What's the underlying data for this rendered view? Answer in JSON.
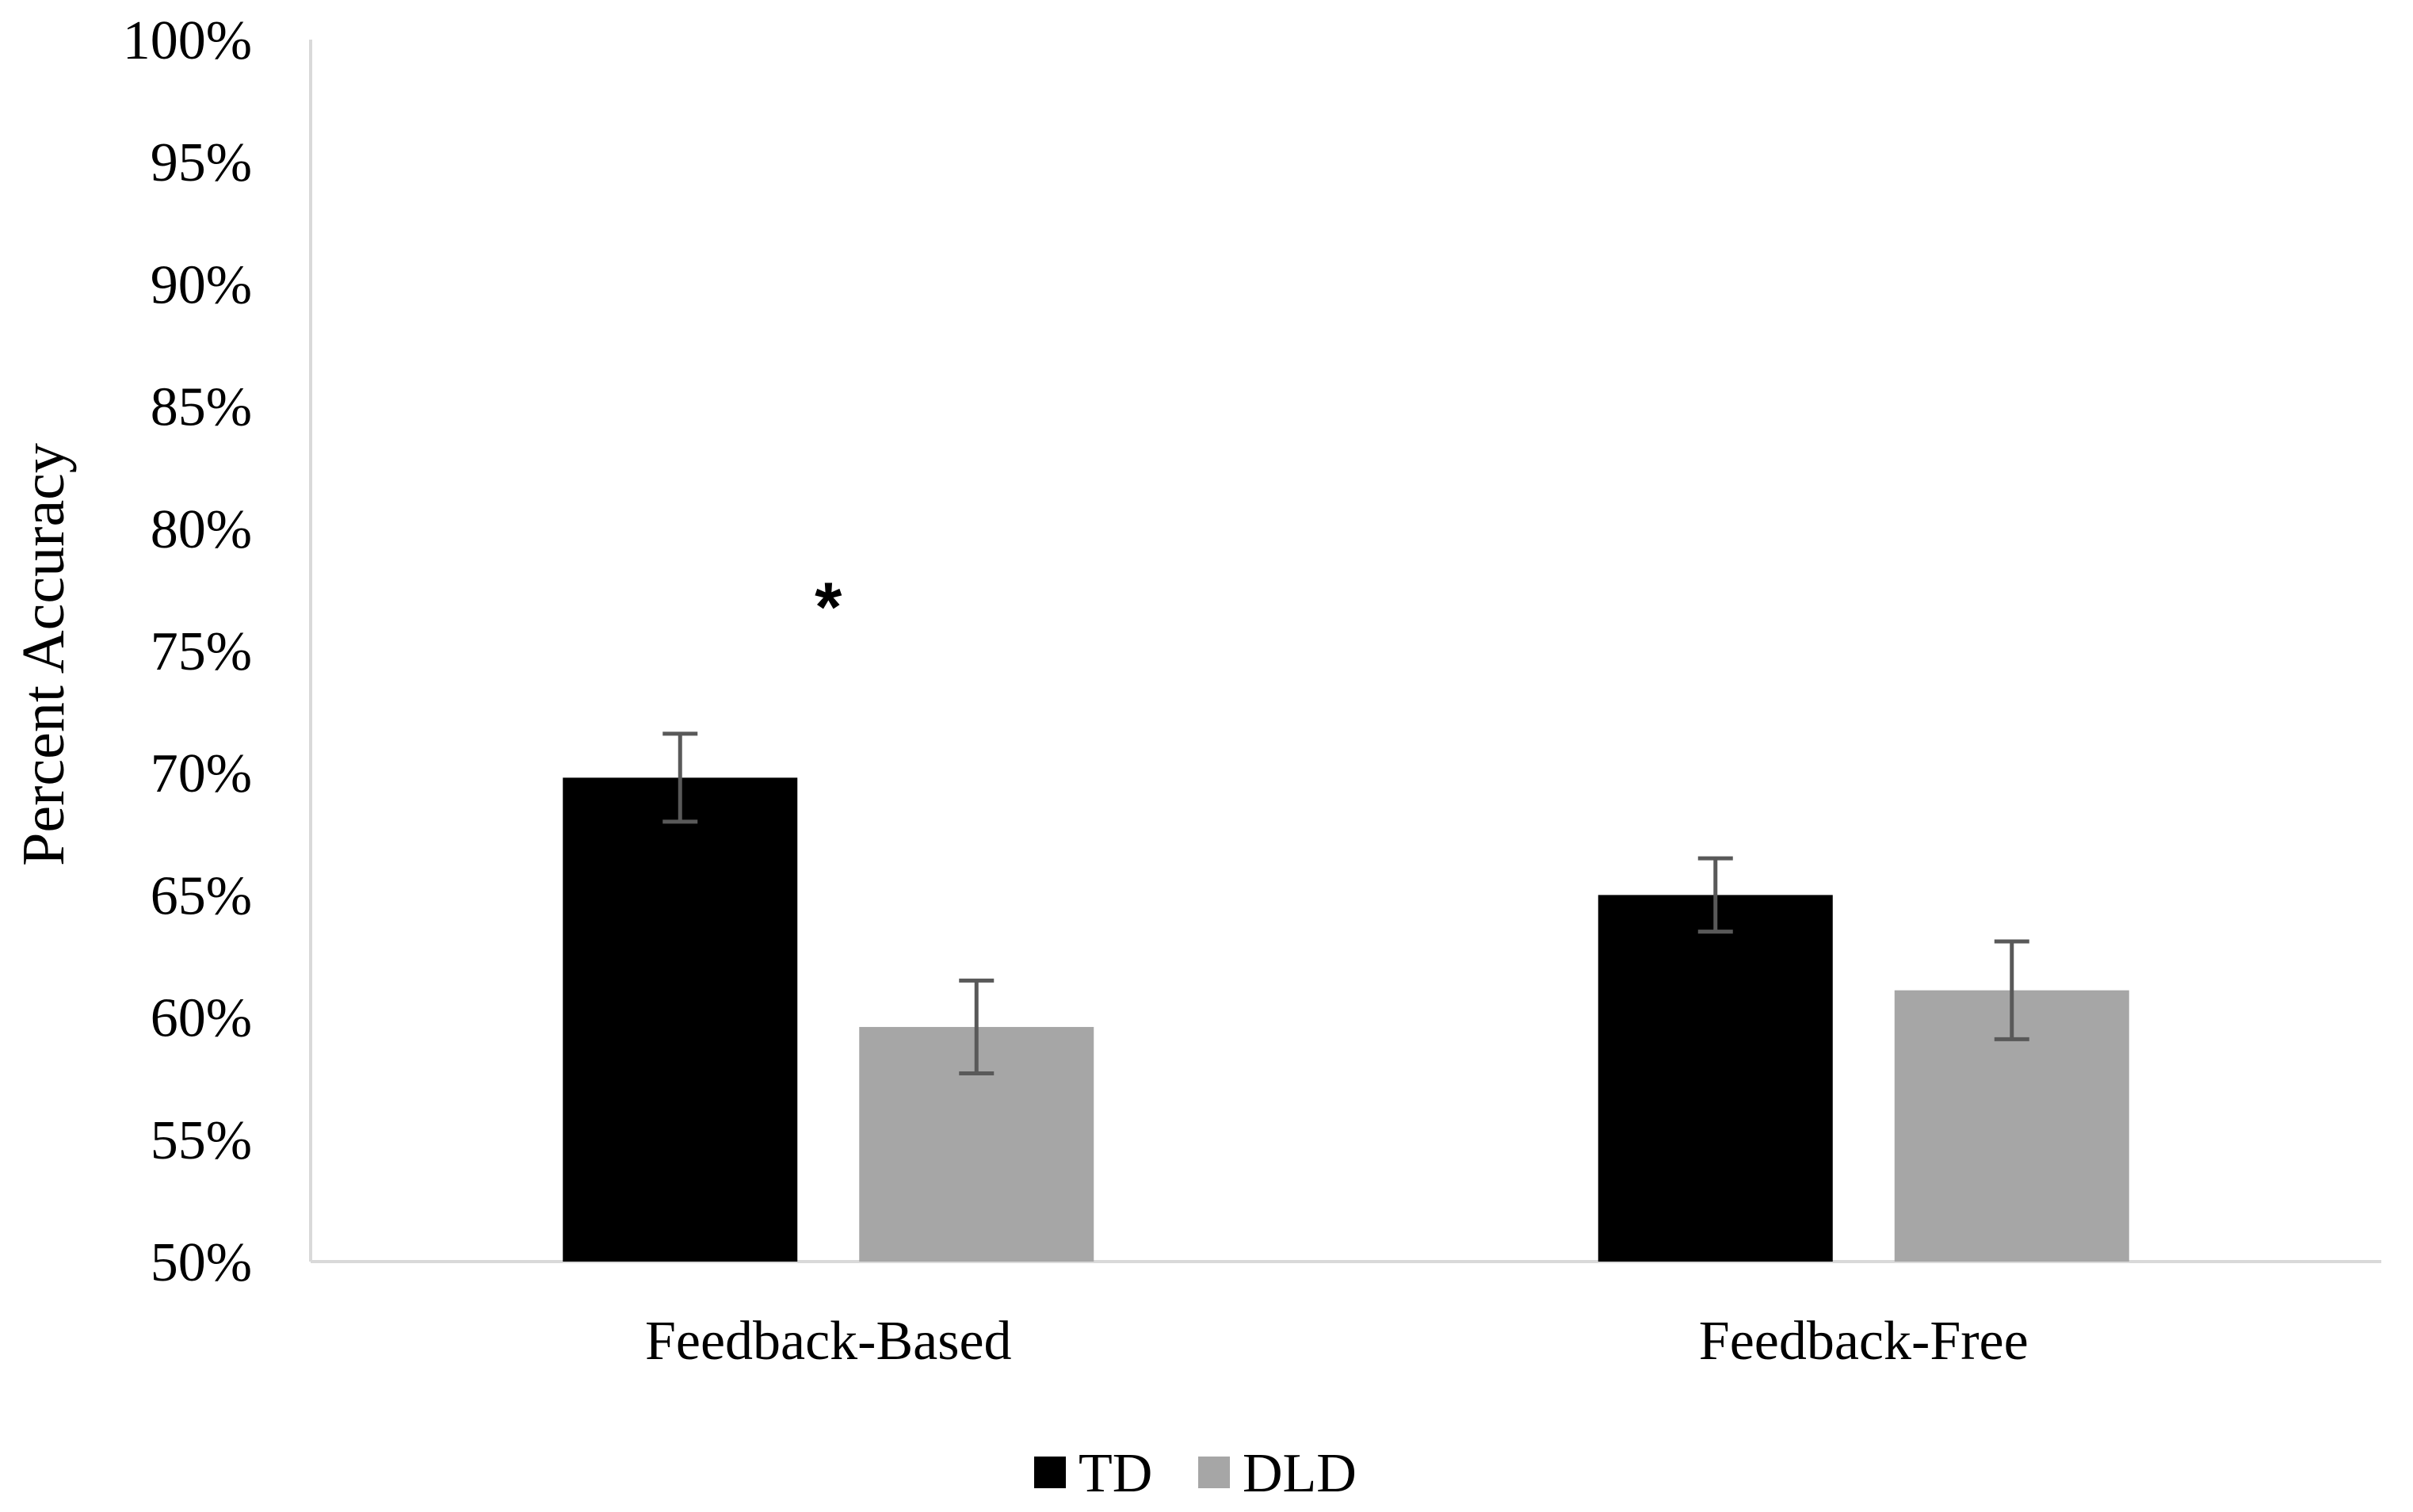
{
  "chart_data": {
    "type": "bar",
    "title": "",
    "xlabel": "",
    "ylabel": "Percent Accuracy",
    "ylim": [
      50,
      100
    ],
    "ytick_step": 5,
    "ytick_suffix": "%",
    "grid": false,
    "legend_position": "bottom",
    "categories": [
      "Feedback-Based",
      "Feedback-Free"
    ],
    "series": [
      {
        "name": "TD",
        "color": "#000000",
        "values": [
          69.8,
          65.0
        ],
        "error": [
          1.8,
          1.5
        ]
      },
      {
        "name": "DLD",
        "color": "#a6a6a6",
        "values": [
          59.6,
          61.1
        ],
        "error": [
          1.9,
          2.0
        ]
      }
    ],
    "annotations": [
      {
        "text": "*",
        "category": "Feedback-Based",
        "y": 77.3
      }
    ]
  }
}
